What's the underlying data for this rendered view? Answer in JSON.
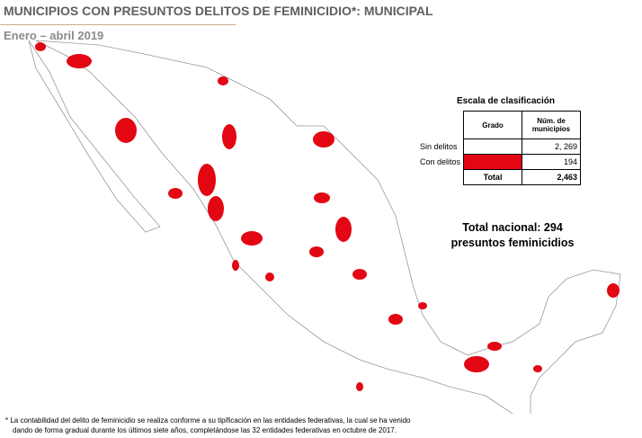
{
  "header": {
    "title": "MUNICIPIOS CON PRESUNTOS DELITOS DE FEMINICIDIO*: MUNICIPAL",
    "subtitle": "Enero – abril 2019"
  },
  "legend": {
    "title": "Escala de clasificación",
    "columns": [
      "Grado",
      "Núm. de municipios"
    ],
    "rows": [
      [
        "Sin delitos",
        "2, 269"
      ],
      [
        "Con delitos",
        "194"
      ]
    ],
    "total": [
      "Total",
      "2,463"
    ]
  },
  "summary": [
    "Total nacional: 294",
    "presuntos feminicidios"
  ],
  "footnote": [
    "* La contabilidad del delito de feminicidio se realiza conforme a su tipificación en las entidades federativas, la cual se ha venido",
    "dando de forma gradual durante los últimos siete años, completándose las 32 entidades federativas en octubre de 2017."
  ]
}
